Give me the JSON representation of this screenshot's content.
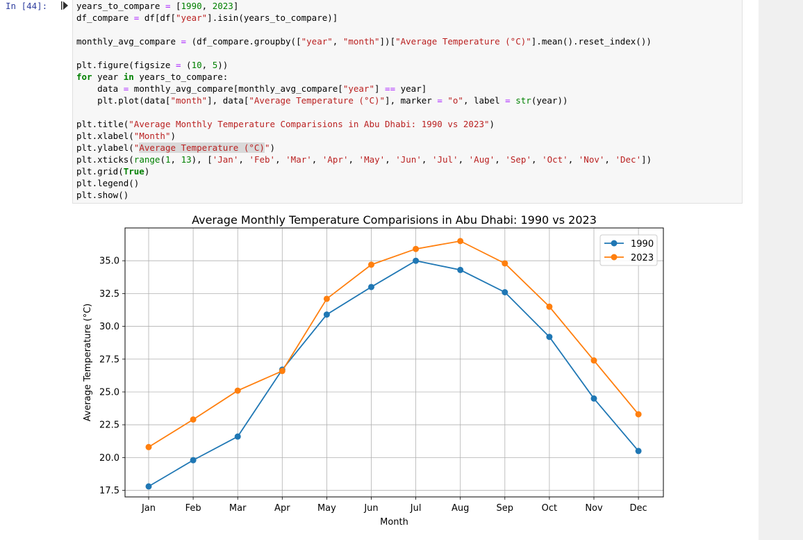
{
  "cell": {
    "prompt": "In [44]:",
    "code_lines": [
      [
        [
          "years_to_compare ",
          ""
        ],
        [
          "=",
          "o"
        ],
        [
          " [",
          ""
        ],
        [
          "1990",
          "n"
        ],
        [
          ", ",
          ""
        ],
        [
          "2023",
          "n"
        ],
        [
          "]",
          ""
        ]
      ],
      [
        [
          "df_compare ",
          ""
        ],
        [
          "=",
          "o"
        ],
        [
          " df[df[",
          ""
        ],
        [
          "\"year\"",
          "s"
        ],
        [
          "].isin(years_to_compare)]",
          ""
        ]
      ],
      [],
      [
        [
          "monthly_avg_compare ",
          ""
        ],
        [
          "=",
          "o"
        ],
        [
          " (df_compare.groupby([",
          ""
        ],
        [
          "\"year\"",
          "s"
        ],
        [
          ", ",
          ""
        ],
        [
          "\"month\"",
          "s"
        ],
        [
          "])[",
          ""
        ],
        [
          "\"Average Temperature (°C)\"",
          "s"
        ],
        [
          "].mean().reset_index())",
          ""
        ]
      ],
      [],
      [
        [
          "plt.figure(figsize ",
          ""
        ],
        [
          "=",
          "o"
        ],
        [
          " (",
          ""
        ],
        [
          "10",
          "n"
        ],
        [
          ", ",
          ""
        ],
        [
          "5",
          "n"
        ],
        [
          "))",
          ""
        ]
      ],
      [
        [
          "for",
          "k"
        ],
        [
          " year ",
          ""
        ],
        [
          "in",
          "k"
        ],
        [
          " years_to_compare:",
          ""
        ]
      ],
      [
        [
          "    data ",
          ""
        ],
        [
          "=",
          "o"
        ],
        [
          " monthly_avg_compare[monthly_avg_compare[",
          ""
        ],
        [
          "\"year\"",
          "s"
        ],
        [
          "] ",
          ""
        ],
        [
          "==",
          "o"
        ],
        [
          " year]",
          ""
        ]
      ],
      [
        [
          "    plt.plot(data[",
          ""
        ],
        [
          "\"month\"",
          "s"
        ],
        [
          "], data[",
          ""
        ],
        [
          "\"Average Temperature (°C)\"",
          "s"
        ],
        [
          "], marker ",
          ""
        ],
        [
          "=",
          "o"
        ],
        [
          " ",
          ""
        ],
        [
          "\"o\"",
          "s"
        ],
        [
          ", label ",
          ""
        ],
        [
          "=",
          "o"
        ],
        [
          " ",
          ""
        ],
        [
          "str",
          "b"
        ],
        [
          "(year))",
          ""
        ]
      ],
      [],
      [
        [
          "plt.title(",
          ""
        ],
        [
          "\"Average Monthly Temperature Comparisions in Abu Dhabi: 1990 vs 2023\"",
          "s"
        ],
        [
          ")",
          ""
        ]
      ],
      [
        [
          "plt.xlabel(",
          ""
        ],
        [
          "\"Month\"",
          "s"
        ],
        [
          ")",
          ""
        ]
      ],
      [
        [
          "plt.ylabel(",
          ""
        ],
        [
          "\"",
          "s"
        ],
        [
          "Average Temperature (°C)",
          "s hl"
        ],
        [
          "\"",
          "s"
        ],
        [
          ")",
          ""
        ]
      ],
      [
        [
          "plt.xticks(",
          ""
        ],
        [
          "range",
          "b"
        ],
        [
          "(",
          ""
        ],
        [
          "1",
          "n"
        ],
        [
          ", ",
          ""
        ],
        [
          "13",
          "n"
        ],
        [
          "), [",
          ""
        ],
        [
          "'Jan'",
          "s"
        ],
        [
          ", ",
          ""
        ],
        [
          "'Feb'",
          "s"
        ],
        [
          ", ",
          ""
        ],
        [
          "'Mar'",
          "s"
        ],
        [
          ", ",
          ""
        ],
        [
          "'Apr'",
          "s"
        ],
        [
          ", ",
          ""
        ],
        [
          "'May'",
          "s"
        ],
        [
          ", ",
          ""
        ],
        [
          "'Jun'",
          "s"
        ],
        [
          ", ",
          ""
        ],
        [
          "'Jul'",
          "s"
        ],
        [
          ", ",
          ""
        ],
        [
          "'Aug'",
          "s"
        ],
        [
          ", ",
          ""
        ],
        [
          "'Sep'",
          "s"
        ],
        [
          ", ",
          ""
        ],
        [
          "'Oct'",
          "s"
        ],
        [
          ", ",
          ""
        ],
        [
          "'Nov'",
          "s"
        ],
        [
          ", ",
          ""
        ],
        [
          "'Dec'",
          "s"
        ],
        [
          "])",
          ""
        ]
      ],
      [
        [
          "plt.grid(",
          ""
        ],
        [
          "True",
          "k"
        ],
        [
          ")",
          ""
        ]
      ],
      [
        [
          "plt.legend()",
          ""
        ]
      ],
      [
        [
          "plt.show()",
          ""
        ]
      ]
    ]
  },
  "chart_data": {
    "type": "line",
    "title": "Average Monthly Temperature Comparisions in Abu Dhabi: 1990 vs 2023",
    "xlabel": "Month",
    "ylabel": "Average Temperature (°C)",
    "categories": [
      "Jan",
      "Feb",
      "Mar",
      "Apr",
      "May",
      "Jun",
      "Jul",
      "Aug",
      "Sep",
      "Oct",
      "Nov",
      "Dec"
    ],
    "yticks": [
      "17.5",
      "20.0",
      "22.5",
      "25.0",
      "27.5",
      "30.0",
      "32.5",
      "35.0"
    ],
    "ylim": [
      17.0,
      37.5
    ],
    "grid": true,
    "legend_position": "upper right",
    "series": [
      {
        "name": "1990",
        "color": "#1f77b4",
        "values": [
          17.8,
          19.8,
          21.6,
          26.7,
          30.9,
          33.0,
          35.0,
          34.3,
          32.6,
          29.2,
          24.5,
          20.5
        ]
      },
      {
        "name": "2023",
        "color": "#ff7f0e",
        "values": [
          20.8,
          22.9,
          25.1,
          26.6,
          32.1,
          34.7,
          35.9,
          36.5,
          34.8,
          31.5,
          27.4,
          23.3
        ]
      }
    ]
  }
}
